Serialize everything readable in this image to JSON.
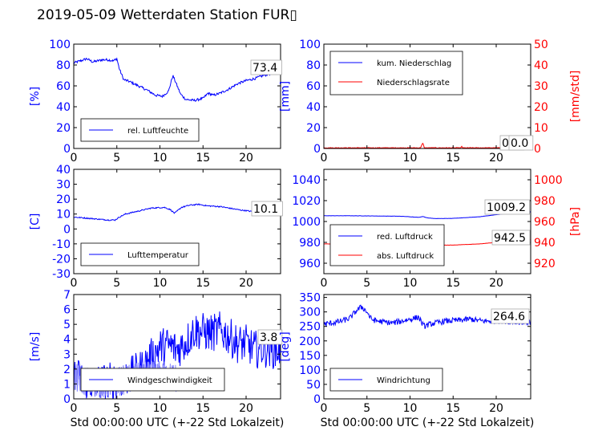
{
  "figure": {
    "title": "2019-05-09 Wetterdaten Station FUR▯"
  },
  "chart_data": [
    {
      "type": "line",
      "ylabel": "[%]",
      "xlabel": "",
      "xlim": [
        0,
        24
      ],
      "ylim": [
        0,
        100
      ],
      "xticks": [
        0,
        5,
        10,
        15,
        20
      ],
      "yticks": [
        0,
        20,
        40,
        60,
        80,
        100
      ],
      "series": [
        {
          "name": "rel. Luftfeuchte",
          "color": "#0000ff",
          "noise": 1.2,
          "x": [
            0,
            0.8,
            1.5,
            2.2,
            2.8,
            3.3,
            4,
            4.6,
            5.0,
            5.3,
            5.8,
            6.5,
            7.5,
            8.5,
            9.5,
            10.3,
            11.0,
            11.5,
            11.9,
            12.4,
            13.0,
            14.0,
            15.0,
            15.6,
            16.2,
            17.0,
            18.0,
            19.0,
            20.0,
            21.0,
            22.0,
            23.0,
            24.0
          ],
          "y": [
            82,
            84,
            86,
            83,
            84,
            85,
            85,
            84,
            86,
            76,
            66,
            64,
            60,
            56,
            51,
            50,
            55,
            70,
            62,
            52,
            47,
            46,
            48,
            53,
            51,
            53,
            57,
            62,
            65,
            67,
            70,
            72,
            74
          ]
        }
      ],
      "last_value": "73.4"
    },
    {
      "type": "line",
      "ylabel": "[mm]",
      "y2label": "[mm/std]",
      "xlabel": "",
      "xlim": [
        0,
        24
      ],
      "ylim": [
        0,
        100
      ],
      "y2lim": [
        0,
        50
      ],
      "xticks": [
        0,
        5,
        10,
        15,
        20
      ],
      "yticks": [
        0,
        20,
        40,
        60,
        80,
        100
      ],
      "y2ticks": [
        0,
        10,
        20,
        30,
        40,
        50
      ],
      "series": [
        {
          "name": "kum. Niederschlag",
          "color": "#0000ff",
          "noise": 0,
          "x": [
            0,
            24
          ],
          "y": [
            0,
            0
          ]
        },
        {
          "name": "Niederschlagsrate",
          "color": "#ff0000",
          "axis": "y2",
          "noise": 0.15,
          "x": [
            0,
            11.2,
            11.35,
            11.5,
            11.65,
            15.9,
            16.0,
            16.1,
            24
          ],
          "y": [
            0.3,
            0.3,
            1.5,
            2.6,
            0.3,
            0.3,
            1.0,
            0.3,
            0.3
          ]
        }
      ],
      "last_value": "0.0",
      "last_value_2": "0.0"
    },
    {
      "type": "line",
      "ylabel": "[C]",
      "xlabel": "",
      "xlim": [
        0,
        24
      ],
      "ylim": [
        -30,
        40
      ],
      "xticks": [
        0,
        5,
        10,
        15,
        20
      ],
      "yticks": [
        -30,
        -20,
        -10,
        0,
        10,
        20,
        30,
        40
      ],
      "series": [
        {
          "name": "Lufttemperatur",
          "color": "#0000ff",
          "noise": 0.4,
          "x": [
            0,
            2,
            4,
            4.8,
            5.3,
            6,
            7.5,
            9,
            10.5,
            11.2,
            11.7,
            12.5,
            13.5,
            14.5,
            15.5,
            17,
            19,
            21,
            23,
            24
          ],
          "y": [
            8,
            7,
            6,
            6,
            8,
            10,
            12,
            14,
            14.5,
            13,
            10.5,
            14.5,
            16,
            16.5,
            15.5,
            15,
            13,
            11.5,
            10.5,
            10
          ]
        }
      ],
      "last_value": "10.1"
    },
    {
      "type": "line",
      "ylabel": "",
      "y2label": "[hPa]",
      "xlabel": "",
      "xlim": [
        0,
        24
      ],
      "ylim": [
        950,
        1050
      ],
      "y2lim": [
        910,
        1010
      ],
      "xticks": [
        0,
        5,
        10,
        15,
        20
      ],
      "yticks": [
        960,
        980,
        1000,
        1020,
        1040
      ],
      "y2ticks": [
        920,
        940,
        960,
        980,
        1000
      ],
      "series": [
        {
          "name": "red. Luftdruck",
          "color": "#0000ff",
          "noise": 0.1,
          "x": [
            0,
            3,
            6,
            9,
            11,
            11.5,
            12,
            13,
            15,
            18,
            20,
            22,
            24
          ],
          "y": [
            1005.5,
            1005.5,
            1005.3,
            1005,
            1004,
            1004.8,
            1003.5,
            1002.8,
            1003,
            1004.5,
            1006.5,
            1008.5,
            1009.2
          ]
        },
        {
          "name": "abs. Luftdruck",
          "color": "#ff0000",
          "axis": "y2",
          "noise": 0.1,
          "x": [
            0,
            3,
            6,
            9,
            11,
            12,
            13,
            15,
            18,
            20,
            22,
            24
          ],
          "y": [
            938.5,
            938.4,
            938.2,
            938,
            937.6,
            937.4,
            937.3,
            937.4,
            938.5,
            940,
            941.5,
            942.5
          ]
        }
      ],
      "last_value": "1009.2",
      "last_value_2": "942.5"
    },
    {
      "type": "line",
      "ylabel": "[m/s]",
      "xlabel": "Std 00:00:00 UTC (+-22 Std Lokalzeit)",
      "xlim": [
        0,
        24
      ],
      "ylim": [
        0,
        7
      ],
      "xticks": [
        0,
        5,
        10,
        15,
        20
      ],
      "yticks": [
        0,
        1,
        2,
        3,
        4,
        5,
        6,
        7
      ],
      "series": [
        {
          "name": "Windgeschwindigkeit",
          "color": "#0000ff",
          "noise": 1.3,
          "x": [
            0,
            1,
            2,
            3,
            4,
            5,
            6,
            7,
            8,
            9,
            10,
            11,
            12,
            13,
            14,
            15,
            16,
            17,
            18,
            19,
            20,
            21,
            22,
            23,
            24
          ],
          "y": [
            1.6,
            1.3,
            1.1,
            1.1,
            1.2,
            1.2,
            1.4,
            1.7,
            2.1,
            2.8,
            3.5,
            3.6,
            3.3,
            3.8,
            4.6,
            4.5,
            4.4,
            4.6,
            4.2,
            3.7,
            3.7,
            3.3,
            3.4,
            3.3,
            3.3
          ]
        },
        {
          "name": "",
          "color": "#8888ff",
          "noise": 1.0,
          "x": [
            0,
            2,
            4,
            6,
            8,
            10,
            12
          ],
          "y": [
            1.4,
            1.1,
            1.0,
            1.3,
            1.5,
            1.6,
            1.4
          ]
        }
      ],
      "last_value": "3.8"
    },
    {
      "type": "line",
      "ylabel": "[deg]",
      "xlabel": "Std 00:00:00 UTC (+-22 Std Lokalzeit)",
      "xlim": [
        0,
        24
      ],
      "ylim": [
        0,
        360
      ],
      "xticks": [
        0,
        5,
        10,
        15,
        20
      ],
      "yticks": [
        0,
        50,
        100,
        150,
        200,
        250,
        300,
        350
      ],
      "series": [
        {
          "name": "Windrichtung",
          "color": "#0000ff",
          "noise": 10,
          "x": [
            0,
            1,
            2,
            3,
            3.8,
            4.4,
            5,
            5.5,
            6,
            7,
            8,
            9,
            10,
            11,
            11.6,
            12,
            13,
            14,
            15,
            16,
            17,
            18,
            19,
            20,
            21,
            22,
            23,
            24
          ],
          "y": [
            258,
            262,
            268,
            278,
            305,
            318,
            300,
            275,
            270,
            265,
            262,
            268,
            275,
            282,
            250,
            255,
            262,
            268,
            270,
            272,
            275,
            270,
            268,
            270,
            268,
            266,
            265,
            264
          ]
        }
      ],
      "last_value": "264.6"
    }
  ]
}
